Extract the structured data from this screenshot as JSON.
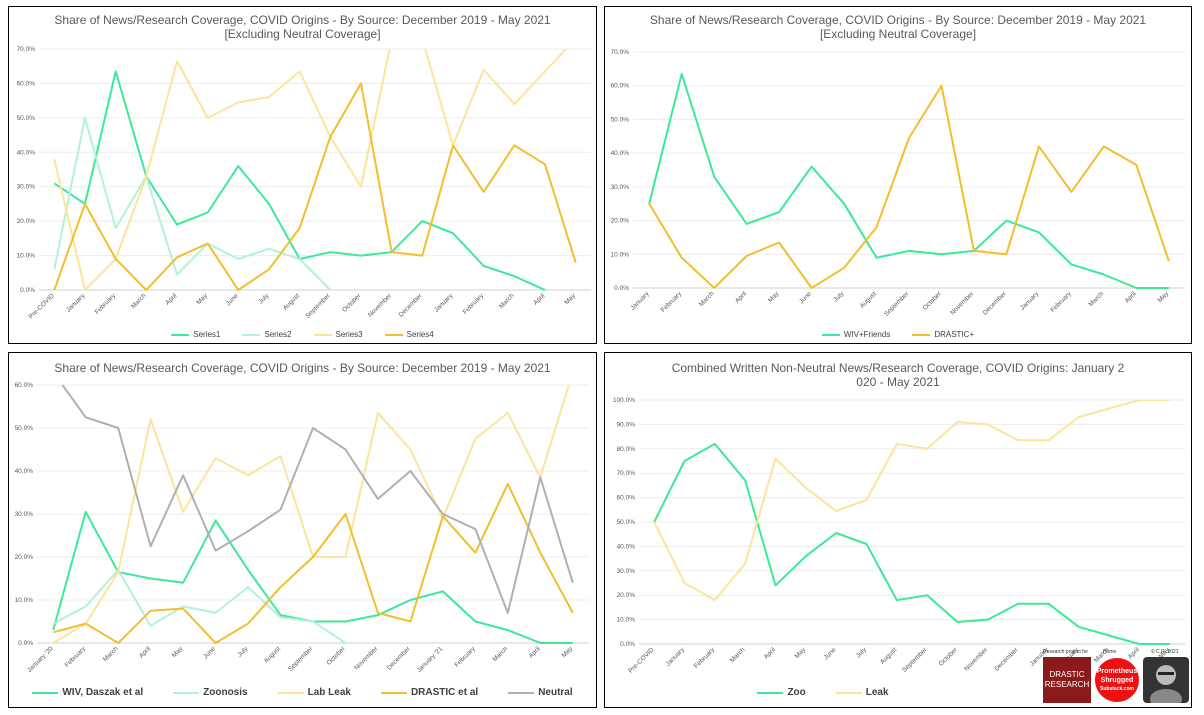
{
  "chart_data": [
    {
      "type": "line",
      "title": "Share of News/Research Coverage, COVID Origins  - By Source: December 2019 - May 2021",
      "subtitle": "[Excluding Neutral Coverage]",
      "categories": [
        "Pre-COVID",
        "January",
        "February",
        "March",
        "April",
        "May",
        "June",
        "July",
        "August",
        "September",
        "October",
        "November",
        "December",
        "January",
        "February",
        "March",
        "April",
        "May"
      ],
      "ylim": [
        0,
        70
      ],
      "yticks": [
        "0.0%",
        "10.0%",
        "20.0%",
        "30.0%",
        "40.0%",
        "50.0%",
        "60.0%",
        "70.0%"
      ],
      "ystep": 10,
      "series": [
        {
          "name": "Series1",
          "color": "#3ee89a",
          "values": [
            31,
            25,
            63.5,
            33,
            19,
            22.5,
            36,
            25,
            9,
            11,
            10,
            11,
            20,
            16.5,
            7,
            4,
            0,
            null
          ]
        },
        {
          "name": "Series2",
          "color": "#b3f2d4",
          "values": [
            6,
            50,
            18,
            33,
            4.5,
            13.5,
            9,
            12,
            9,
            0,
            null,
            null,
            null,
            null,
            null,
            null,
            null,
            null
          ]
        },
        {
          "name": "Series3",
          "color": "#fde39b",
          "values": [
            38,
            0,
            9,
            33,
            66.5,
            50,
            54.5,
            56,
            63.5,
            44.5,
            30,
            73,
            73,
            42,
            64,
            54,
            63.5,
            73
          ]
        },
        {
          "name": "Series4",
          "color": "#f3be2e",
          "values": [
            0,
            25,
            9,
            0,
            9.5,
            13.5,
            0,
            6,
            18,
            44.5,
            60,
            11,
            10,
            42,
            28.5,
            42,
            36.5,
            8
          ]
        }
      ]
    },
    {
      "type": "line",
      "title": "Share of News/Research Coverage, COVID Origins  - By Source: December 2019 - May 2021",
      "subtitle": "[Excluding Neutral Coverage]",
      "categories": [
        "January",
        "February",
        "March",
        "April",
        "May",
        "June",
        "July",
        "August",
        "September",
        "October",
        "November",
        "December",
        "January",
        "February",
        "March",
        "April",
        "May"
      ],
      "ylim": [
        0,
        70
      ],
      "yticks": [
        "0.0%",
        "10.0%",
        "20.0%",
        "30.0%",
        "40.0%",
        "50.0%",
        "60.0%",
        "70.0%"
      ],
      "ystep": 10,
      "series": [
        {
          "name": "WIV+Friends",
          "color": "#3ee89a",
          "values": [
            25,
            63.5,
            33,
            19,
            22.5,
            36,
            25,
            9,
            11,
            10,
            11,
            20,
            16.5,
            7,
            4,
            0,
            0
          ]
        },
        {
          "name": "DRASTIC+",
          "color": "#f3be2e",
          "values": [
            25,
            9,
            0,
            9.5,
            13.5,
            0,
            6,
            18,
            44.5,
            60,
            11,
            10,
            42,
            28.5,
            42,
            36.5,
            8
          ]
        }
      ]
    },
    {
      "type": "line",
      "title": "Share of News/Research Coverage, COVID Origins  - By Source: December 2019 - May 2021",
      "subtitle": "",
      "categories": [
        "January '20",
        "February",
        "March",
        "April",
        "May",
        "June",
        "July",
        "August",
        "September",
        "October",
        "November",
        "December",
        "January '21",
        "February",
        "March",
        "April",
        "May"
      ],
      "ylim": [
        0,
        60
      ],
      "yticks": [
        "0.0%",
        "10.0%",
        "20.0%",
        "30.0%",
        "40.0%",
        "50.0%",
        "60.0%"
      ],
      "ystep": 10,
      "series": [
        {
          "name": "WIV, Daszak et al",
          "color": "#3ee89a",
          "values": [
            3,
            30.5,
            16.5,
            15,
            14,
            28.5,
            17,
            6.5,
            5,
            5,
            6.5,
            10,
            12,
            5,
            3,
            0,
            0
          ]
        },
        {
          "name": "Zoonosis",
          "color": "#b3f2d4",
          "values": [
            4.5,
            8.5,
            17,
            4,
            8.5,
            7,
            13,
            6,
            5,
            0,
            null,
            null,
            null,
            null,
            null,
            null,
            null
          ]
        },
        {
          "name": "Lab Leak",
          "color": "#fde39b",
          "values": [
            0,
            4.5,
            16.5,
            52,
            30.5,
            43,
            39,
            43.5,
            20,
            20,
            53.5,
            45,
            29,
            47.5,
            53.5,
            38.5,
            63
          ]
        },
        {
          "name": "DRASTIC et al",
          "color": "#f3be2e",
          "values": [
            2.5,
            4.5,
            0,
            7.5,
            8,
            0,
            4.5,
            13,
            20,
            30,
            7,
            5,
            29.5,
            21,
            37,
            21,
            7
          ]
        },
        {
          "name": "Neutral",
          "color": "#b0b0b0",
          "values": [
            63,
            52.5,
            50,
            22.5,
            39,
            21.5,
            26,
            31,
            50,
            45,
            33.5,
            40,
            30,
            26.5,
            7,
            38.5,
            14
          ]
        }
      ]
    },
    {
      "type": "line",
      "title": "Combined Written Non-Neutral News/Research Coverage, COVID Origins: January 2",
      "subtitle": "020 - May 2021",
      "categories": [
        "Pre-COVID",
        "January",
        "February",
        "March",
        "April",
        "May",
        "June",
        "July",
        "August",
        "September",
        "October",
        "November",
        "December",
        "January",
        "February",
        "March",
        "April",
        "May"
      ],
      "ylim": [
        0,
        100
      ],
      "yticks": [
        "0.0%",
        "10.0%",
        "20.0%",
        "30.0%",
        "40.0%",
        "50.0%",
        "60.0%",
        "70.0%",
        "80.0%",
        "90.0%",
        "100.0%"
      ],
      "ystep": 10,
      "series": [
        {
          "name": "Zoo",
          "color": "#3ee89a",
          "values": [
            50,
            75,
            82,
            67,
            24,
            36,
            45.5,
            41,
            18,
            20,
            9,
            10,
            16.5,
            16.5,
            7,
            3.5,
            0,
            0
          ]
        },
        {
          "name": "Leak",
          "color": "#fde39b",
          "values": [
            50,
            25,
            18,
            33,
            76,
            64,
            54.5,
            59,
            82,
            80,
            91,
            90,
            83.5,
            83.5,
            93,
            96.5,
            100,
            100
          ]
        }
      ]
    }
  ],
  "logos": {
    "drastic": "DRASTIC RESEARCH",
    "drastic_caption": "Research project for",
    "prometheus": "Prometheus Shrugged",
    "prometheus_sub": "Substack.com",
    "prometheus_caption": "Home",
    "copyright": "© C.R. 2021"
  }
}
